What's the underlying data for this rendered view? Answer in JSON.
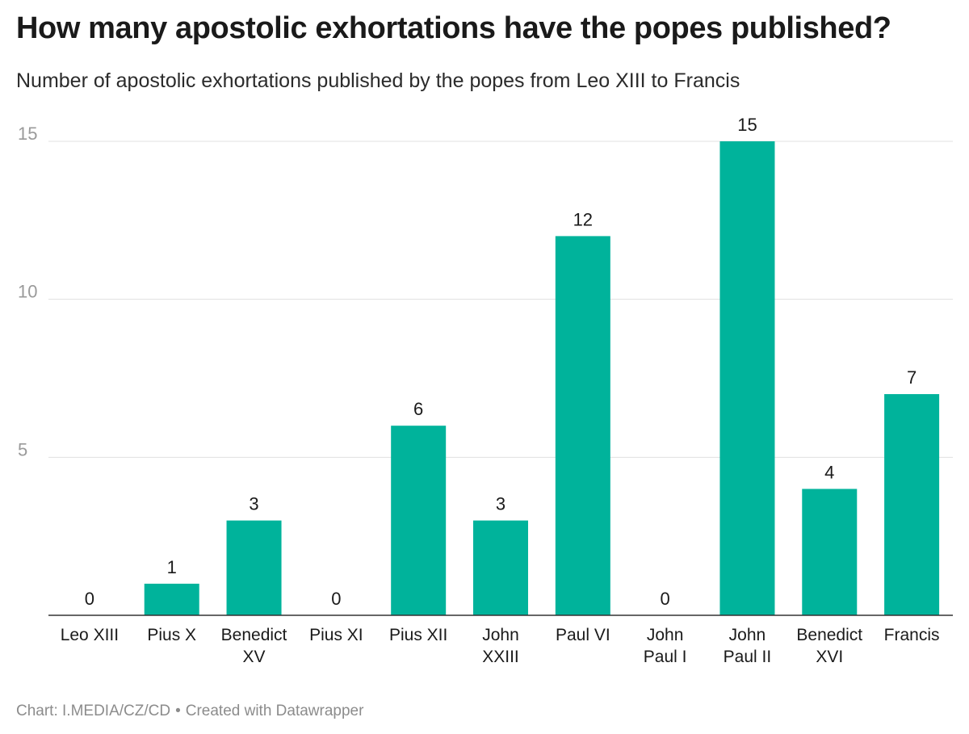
{
  "header": {
    "title": "How many apostolic exhortations have the popes published?",
    "subtitle": "Number of apostolic exhortations published by the popes from Leo XIII to Francis"
  },
  "footer": {
    "source": "Chart: I.MEDIA/CZ/CD",
    "separator": "•",
    "credit": "Created with Datawrapper"
  },
  "colors": {
    "bar": "#00b39b",
    "grid": "#e0e0e0",
    "axis": "#333333",
    "tick_label": "#9a9a9a"
  },
  "chart_data": {
    "type": "bar",
    "title": "How many apostolic exhortations have the popes published?",
    "subtitle": "Number of apostolic exhortations published by the popes from Leo XIII to Francis",
    "categories": [
      [
        "Leo XIII"
      ],
      [
        "Pius X"
      ],
      [
        "Benedict",
        "XV"
      ],
      [
        "Pius XI"
      ],
      [
        "Pius XII"
      ],
      [
        "John",
        "XXIII"
      ],
      [
        "Paul VI"
      ],
      [
        "John",
        "Paul I"
      ],
      [
        "John",
        "Paul II"
      ],
      [
        "Benedict",
        "XVI"
      ],
      [
        "Francis"
      ]
    ],
    "values": [
      0,
      1,
      3,
      0,
      6,
      3,
      12,
      0,
      15,
      4,
      7
    ],
    "data_labels": true,
    "y_ticks": [
      5,
      10,
      15
    ],
    "ylim": [
      0,
      15
    ],
    "grid": true,
    "xlabel": "",
    "ylabel": ""
  }
}
